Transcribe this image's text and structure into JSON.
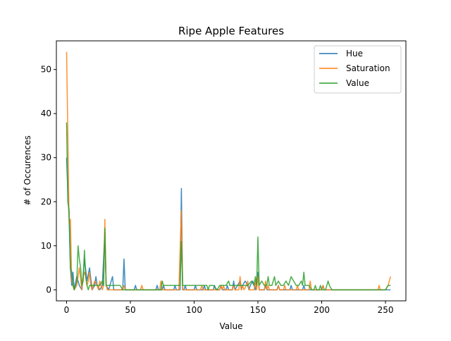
{
  "chart_data": {
    "type": "line",
    "title": "Ripe Apple Features",
    "xlabel": "Value",
    "ylabel": "# of Occurences",
    "xlim": [
      -8,
      266
    ],
    "ylim": [
      -2.5,
      56.5
    ],
    "xticks": [
      0,
      50,
      100,
      150,
      200,
      250
    ],
    "yticks": [
      0,
      10,
      20,
      30,
      40,
      50
    ],
    "grid": false,
    "legend_position": "top-right",
    "series": [
      {
        "name": "Hue",
        "color": "#1f77b4",
        "points": [
          [
            0,
            30
          ],
          [
            1,
            22
          ],
          [
            2,
            16
          ],
          [
            3,
            5
          ],
          [
            4,
            1
          ],
          [
            5,
            4
          ],
          [
            6,
            0
          ],
          [
            8,
            3
          ],
          [
            10,
            1
          ],
          [
            12,
            0
          ],
          [
            14,
            7
          ],
          [
            16,
            2
          ],
          [
            18,
            5
          ],
          [
            20,
            0
          ],
          [
            22,
            1
          ],
          [
            23,
            3
          ],
          [
            24,
            1
          ],
          [
            26,
            0
          ],
          [
            28,
            1
          ],
          [
            30,
            13
          ],
          [
            31,
            1
          ],
          [
            33,
            0
          ],
          [
            36,
            3
          ],
          [
            37,
            0
          ],
          [
            44,
            0
          ],
          [
            45,
            7
          ],
          [
            46,
            0
          ],
          [
            53,
            0
          ],
          [
            54,
            1
          ],
          [
            55,
            0
          ],
          [
            70,
            0
          ],
          [
            71,
            1
          ],
          [
            72,
            0
          ],
          [
            75,
            0
          ],
          [
            76,
            1
          ],
          [
            77,
            0
          ],
          [
            84,
            0
          ],
          [
            85,
            1
          ],
          [
            86,
            0
          ],
          [
            89,
            0
          ],
          [
            90,
            23
          ],
          [
            91,
            0
          ],
          [
            92,
            0
          ],
          [
            93,
            1
          ],
          [
            94,
            0
          ],
          [
            100,
            0
          ],
          [
            101,
            1
          ],
          [
            102,
            0
          ],
          [
            107,
            0
          ],
          [
            108,
            1
          ],
          [
            109,
            0
          ],
          [
            115,
            0
          ],
          [
            116,
            1
          ],
          [
            117,
            0
          ],
          [
            120,
            0
          ],
          [
            121,
            1
          ],
          [
            122,
            0
          ],
          [
            125,
            0
          ],
          [
            126,
            1
          ],
          [
            127,
            0
          ],
          [
            130,
            0
          ],
          [
            131,
            2
          ],
          [
            132,
            0
          ],
          [
            134,
            1
          ],
          [
            136,
            2
          ],
          [
            137,
            0
          ],
          [
            138,
            1
          ],
          [
            140,
            2
          ],
          [
            142,
            1
          ],
          [
            143,
            0
          ],
          [
            144,
            1
          ],
          [
            146,
            2
          ],
          [
            148,
            0
          ],
          [
            150,
            4
          ],
          [
            151,
            0
          ],
          [
            155,
            0
          ],
          [
            156,
            1
          ],
          [
            157,
            0
          ],
          [
            165,
            0
          ],
          [
            166,
            1
          ],
          [
            167,
            0
          ],
          [
            175,
            0
          ],
          [
            176,
            1
          ],
          [
            177,
            0
          ],
          [
            185,
            0
          ],
          [
            186,
            1
          ],
          [
            187,
            0
          ],
          [
            200,
            0
          ],
          [
            201,
            1
          ],
          [
            202,
            0
          ],
          [
            254,
            0
          ]
        ]
      },
      {
        "name": "Saturation",
        "color": "#ff7f0e",
        "points": [
          [
            0,
            54
          ],
          [
            1,
            35
          ],
          [
            2,
            15
          ],
          [
            3,
            16
          ],
          [
            4,
            2
          ],
          [
            5,
            1
          ],
          [
            6,
            0
          ],
          [
            8,
            1
          ],
          [
            9,
            3
          ],
          [
            10,
            5
          ],
          [
            12,
            0
          ],
          [
            13,
            3
          ],
          [
            14,
            4
          ],
          [
            15,
            3
          ],
          [
            16,
            1
          ],
          [
            17,
            2
          ],
          [
            18,
            4
          ],
          [
            19,
            1
          ],
          [
            20,
            0
          ],
          [
            22,
            2
          ],
          [
            24,
            1
          ],
          [
            25,
            0
          ],
          [
            26,
            2
          ],
          [
            28,
            0
          ],
          [
            29,
            1
          ],
          [
            30,
            16
          ],
          [
            31,
            1
          ],
          [
            32,
            0
          ],
          [
            44,
            0
          ],
          [
            45,
            1
          ],
          [
            46,
            0
          ],
          [
            58,
            0
          ],
          [
            59,
            1
          ],
          [
            60,
            0
          ],
          [
            73,
            0
          ],
          [
            74,
            2
          ],
          [
            75,
            0
          ],
          [
            88,
            0
          ],
          [
            89,
            9
          ],
          [
            90,
            18
          ],
          [
            91,
            0
          ],
          [
            105,
            0
          ],
          [
            106,
            1
          ],
          [
            107,
            0
          ],
          [
            120,
            0
          ],
          [
            121,
            1
          ],
          [
            122,
            0
          ],
          [
            123,
            1
          ],
          [
            124,
            0
          ],
          [
            130,
            0
          ],
          [
            131,
            1
          ],
          [
            132,
            0
          ],
          [
            135,
            0
          ],
          [
            136,
            3
          ],
          [
            137,
            0
          ],
          [
            138,
            1
          ],
          [
            139,
            0
          ],
          [
            141,
            1
          ],
          [
            142,
            2
          ],
          [
            143,
            0
          ],
          [
            147,
            0
          ],
          [
            148,
            2
          ],
          [
            149,
            0
          ],
          [
            150,
            3
          ],
          [
            151,
            0
          ],
          [
            155,
            0
          ],
          [
            156,
            2
          ],
          [
            157,
            0
          ],
          [
            158,
            1
          ],
          [
            159,
            0
          ],
          [
            165,
            0
          ],
          [
            166,
            1
          ],
          [
            167,
            0
          ],
          [
            170,
            0
          ],
          [
            171,
            1
          ],
          [
            172,
            0
          ],
          [
            180,
            0
          ],
          [
            181,
            1
          ],
          [
            182,
            0
          ],
          [
            190,
            0
          ],
          [
            191,
            2
          ],
          [
            192,
            0
          ],
          [
            200,
            0
          ],
          [
            201,
            1
          ],
          [
            202,
            0
          ],
          [
            244,
            0
          ],
          [
            245,
            1
          ],
          [
            246,
            0
          ],
          [
            250,
            0
          ],
          [
            252,
            1
          ],
          [
            254,
            3
          ]
        ]
      },
      {
        "name": "Value",
        "color": "#2ca02c",
        "points": [
          [
            0,
            38
          ],
          [
            1,
            20
          ],
          [
            2,
            18
          ],
          [
            3,
            5
          ],
          [
            4,
            4
          ],
          [
            5,
            1
          ],
          [
            6,
            0
          ],
          [
            7,
            1
          ],
          [
            8,
            2
          ],
          [
            9,
            10
          ],
          [
            10,
            7
          ],
          [
            11,
            5
          ],
          [
            12,
            1
          ],
          [
            13,
            2
          ],
          [
            14,
            9
          ],
          [
            15,
            3
          ],
          [
            16,
            1
          ],
          [
            17,
            0
          ],
          [
            18,
            1
          ],
          [
            20,
            1
          ],
          [
            22,
            1
          ],
          [
            24,
            1
          ],
          [
            26,
            1
          ],
          [
            28,
            2
          ],
          [
            29,
            1
          ],
          [
            30,
            14
          ],
          [
            31,
            1
          ],
          [
            34,
            1
          ],
          [
            38,
            1
          ],
          [
            42,
            1
          ],
          [
            44,
            0
          ],
          [
            50,
            0
          ],
          [
            60,
            0
          ],
          [
            65,
            0
          ],
          [
            74,
            0
          ],
          [
            75,
            2
          ],
          [
            76,
            1
          ],
          [
            80,
            1
          ],
          [
            86,
            1
          ],
          [
            89,
            1
          ],
          [
            90,
            11
          ],
          [
            91,
            1
          ],
          [
            95,
            1
          ],
          [
            100,
            1
          ],
          [
            105,
            1
          ],
          [
            110,
            1
          ],
          [
            111,
            0
          ],
          [
            112,
            1
          ],
          [
            115,
            1
          ],
          [
            118,
            0
          ],
          [
            120,
            1
          ],
          [
            125,
            1
          ],
          [
            127,
            2
          ],
          [
            128,
            1
          ],
          [
            132,
            1
          ],
          [
            135,
            1
          ],
          [
            138,
            1
          ],
          [
            142,
            1
          ],
          [
            145,
            2
          ],
          [
            147,
            1
          ],
          [
            148,
            3
          ],
          [
            149,
            1
          ],
          [
            150,
            12
          ],
          [
            151,
            1
          ],
          [
            153,
            2
          ],
          [
            155,
            1
          ],
          [
            157,
            1
          ],
          [
            158,
            3
          ],
          [
            159,
            1
          ],
          [
            161,
            1
          ],
          [
            163,
            3
          ],
          [
            164,
            1
          ],
          [
            166,
            2
          ],
          [
            168,
            1
          ],
          [
            170,
            1
          ],
          [
            172,
            2
          ],
          [
            174,
            1
          ],
          [
            176,
            3
          ],
          [
            178,
            2
          ],
          [
            180,
            1
          ],
          [
            182,
            1
          ],
          [
            184,
            2
          ],
          [
            185,
            1
          ],
          [
            186,
            4
          ],
          [
            187,
            1
          ],
          [
            190,
            1
          ],
          [
            192,
            0
          ],
          [
            194,
            0
          ],
          [
            195,
            1
          ],
          [
            196,
            0
          ],
          [
            198,
            0
          ],
          [
            199,
            1
          ],
          [
            200,
            0
          ],
          [
            203,
            0
          ],
          [
            205,
            2
          ],
          [
            206,
            1
          ],
          [
            208,
            0
          ],
          [
            220,
            0
          ],
          [
            230,
            0
          ],
          [
            240,
            0
          ],
          [
            250,
            0
          ],
          [
            252,
            1
          ],
          [
            254,
            1
          ]
        ]
      }
    ]
  }
}
